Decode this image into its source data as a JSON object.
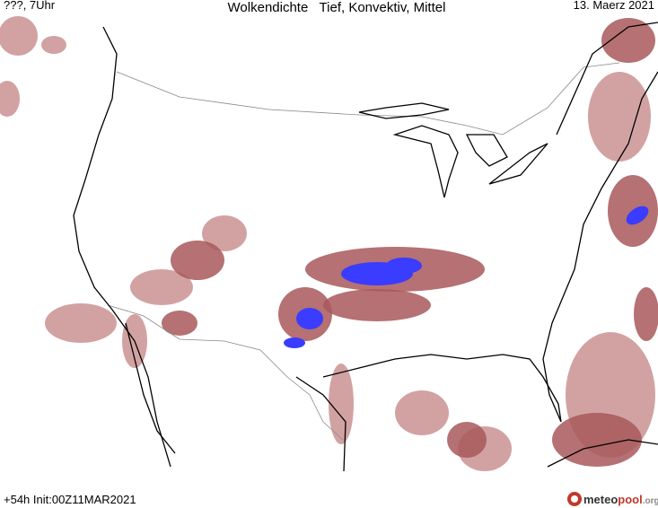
{
  "header": {
    "left": "???, 7Uhr",
    "title": "Wolkendichte   Tief, Konvektiv, Mittel",
    "right": "13. Maerz 2021"
  },
  "footer": {
    "left": "+54h Init:00Z11MAR2021",
    "logo": [
      "meteo",
      "pool",
      ".org"
    ]
  }
}
